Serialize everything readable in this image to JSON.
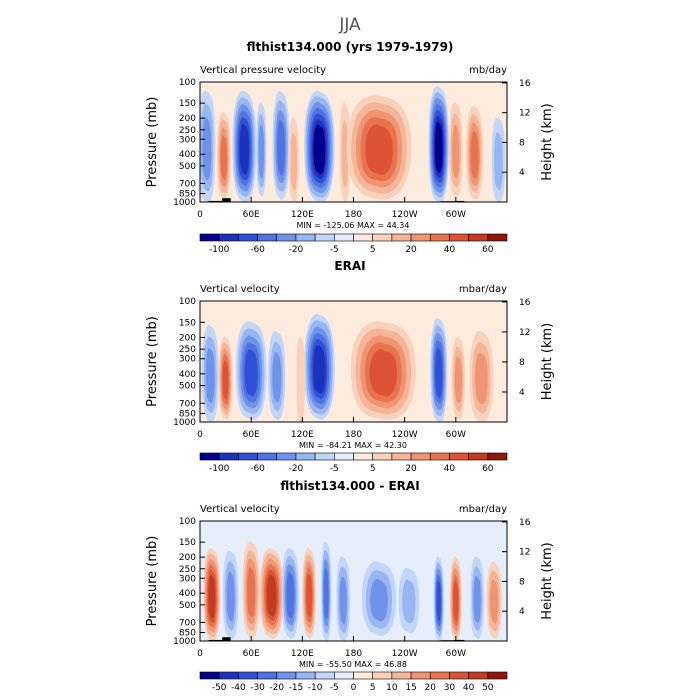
{
  "figure_title": "JJA",
  "chart_data": [
    {
      "type": "heatmap",
      "title": "flthist134.000 (yrs 1979-1979)",
      "left_label": "Vertical pressure velocity",
      "right_label": "mb/day",
      "ylabel": "Pressure (mb)",
      "y2label": "Height (km)",
      "yticks": [
        "100",
        "150",
        "200",
        "250",
        "300",
        "400",
        "500",
        "700",
        "850",
        "1000"
      ],
      "ytick_values": [
        100,
        150,
        200,
        250,
        300,
        400,
        500,
        700,
        850,
        1000
      ],
      "y2ticks": [
        "16",
        "12",
        "8",
        "4"
      ],
      "y2tick_values": [
        16,
        12,
        8,
        4
      ],
      "xticks": [
        "0",
        "60E",
        "120E",
        "180",
        "120W",
        "60W"
      ],
      "xtick_values": [
        0,
        60,
        120,
        180,
        240,
        300
      ],
      "xlim": [
        0,
        360
      ],
      "ylim": [
        100,
        1000
      ],
      "min_max": "MIN = -125.06   MAX =  44.34",
      "colorbar_labels": [
        "-100",
        "-60",
        "-20",
        "-5",
        "5",
        "20",
        "40",
        "60"
      ],
      "colorbar_colors": [
        "#08008c",
        "#1c32bd",
        "#3050d8",
        "#4f73e2",
        "#6f92ea",
        "#97b6f2",
        "#c2d6f7",
        "#e6eefb",
        "#fdebdd",
        "#f9d2bc",
        "#f5b598",
        "#f09571",
        "#e8744f",
        "#dc5434",
        "#c33a1f",
        "#8f1608"
      ],
      "has_topography": true
    },
    {
      "type": "heatmap",
      "title": "ERAI",
      "left_label": "Vertical velocity",
      "right_label": "mbar/day",
      "ylabel": "Pressure (mb)",
      "y2label": "Height (km)",
      "yticks": [
        "100",
        "150",
        "200",
        "250",
        "300",
        "400",
        "500",
        "700",
        "850",
        "1000"
      ],
      "ytick_values": [
        100,
        150,
        200,
        250,
        300,
        400,
        500,
        700,
        850,
        1000
      ],
      "y2ticks": [
        "16",
        "12",
        "8",
        "4"
      ],
      "y2tick_values": [
        16,
        12,
        8,
        4
      ],
      "xticks": [
        "0",
        "60E",
        "120E",
        "180",
        "120W",
        "60W"
      ],
      "xtick_values": [
        0,
        60,
        120,
        180,
        240,
        300
      ],
      "xlim": [
        0,
        360
      ],
      "ylim": [
        100,
        1000
      ],
      "min_max": "MIN = -84.21   MAX =  42.30",
      "colorbar_labels": [
        "-100",
        "-60",
        "-20",
        "-5",
        "5",
        "20",
        "40",
        "60"
      ],
      "colorbar_colors": [
        "#08008c",
        "#1c32bd",
        "#3050d8",
        "#4f73e2",
        "#6f92ea",
        "#97b6f2",
        "#c2d6f7",
        "#e6eefb",
        "#fdebdd",
        "#f9d2bc",
        "#f5b598",
        "#f09571",
        "#e8744f",
        "#dc5434",
        "#c33a1f",
        "#8f1608"
      ],
      "has_topography": false
    },
    {
      "type": "heatmap",
      "title": "flthist134.000 - ERAI",
      "left_label": "Vertical velocity",
      "right_label": "mbar/day",
      "ylabel": "Pressure (mb)",
      "y2label": "Height (km)",
      "yticks": [
        "100",
        "150",
        "200",
        "250",
        "300",
        "400",
        "500",
        "700",
        "850",
        "1000"
      ],
      "ytick_values": [
        100,
        150,
        200,
        250,
        300,
        400,
        500,
        700,
        850,
        1000
      ],
      "y2ticks": [
        "16",
        "12",
        "8",
        "4"
      ],
      "y2tick_values": [
        16,
        12,
        8,
        4
      ],
      "xticks": [
        "0",
        "60E",
        "120E",
        "180",
        "120W",
        "60W"
      ],
      "xtick_values": [
        0,
        60,
        120,
        180,
        240,
        300
      ],
      "xlim": [
        0,
        360
      ],
      "ylim": [
        100,
        1000
      ],
      "min_max": "MIN = -55.50   MAX =  46.88",
      "colorbar_labels": [
        "-50",
        "-40",
        "-30",
        "-20",
        "-15",
        "-10",
        "-5",
        "0",
        "5",
        "10",
        "15",
        "20",
        "30",
        "40",
        "50"
      ],
      "colorbar_colors": [
        "#08008c",
        "#1c32bd",
        "#3050d8",
        "#4f73e2",
        "#6f92ea",
        "#97b6f2",
        "#c2d6f7",
        "#e6eefb",
        "#fdebdd",
        "#f9d2bc",
        "#f5b598",
        "#f09571",
        "#e8744f",
        "#dc5434",
        "#c33a1f",
        "#8f1608"
      ],
      "has_topography": true
    }
  ]
}
